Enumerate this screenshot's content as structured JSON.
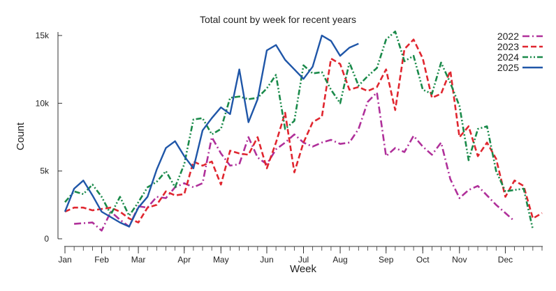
{
  "chart_data": {
    "type": "line",
    "title": "Total count by week for recent years",
    "xlabel": "Week",
    "ylabel": "Count",
    "x_range": [
      1,
      53
    ],
    "ylim": [
      0,
      15500
    ],
    "grid": false,
    "legend_placement": "top-right",
    "x_ticks": [
      {
        "label": "Jan",
        "week": 1
      },
      {
        "label": "Feb",
        "week": 5
      },
      {
        "label": "Mar",
        "week": 9
      },
      {
        "label": "Apr",
        "week": 14
      },
      {
        "label": "May",
        "week": 18
      },
      {
        "label": "Jun",
        "week": 23
      },
      {
        "label": "Jul",
        "week": 27
      },
      {
        "label": "Aug",
        "week": 31
      },
      {
        "label": "Sep",
        "week": 36
      },
      {
        "label": "Oct",
        "week": 40
      },
      {
        "label": "Nov",
        "week": 44
      },
      {
        "label": "Dec",
        "week": 49
      }
    ],
    "y_ticks": [
      {
        "label": "0",
        "value": 0
      },
      {
        "label": "5k",
        "value": 5000
      },
      {
        "label": "10k",
        "value": 10000
      },
      {
        "label": "15k",
        "value": 15000
      }
    ],
    "series": [
      {
        "name": "2022",
        "color": "#b0309a",
        "dash": "dashdot",
        "start_week": 2,
        "values": [
          1100,
          1150,
          1200,
          600,
          2000,
          1400,
          900,
          2400,
          2300,
          3100,
          3000,
          3800,
          4100,
          3800,
          4100,
          7500,
          6300,
          5400,
          5500,
          7500,
          6000,
          5500,
          6600,
          7100,
          7700,
          7100,
          6800,
          7100,
          7300,
          7000,
          7100,
          8100,
          10100,
          10800,
          6100,
          6700,
          6400,
          7600,
          6800,
          6200,
          7100,
          4400,
          3000,
          3600,
          3900,
          3200,
          2500,
          1900,
          1300
        ]
      },
      {
        "name": "2023",
        "color": "#e0262f",
        "dash": "dash",
        "start_week": 1,
        "values": [
          2000,
          2300,
          2300,
          2100,
          2200,
          2300,
          2000,
          1500,
          1200,
          2300,
          2500,
          3500,
          3200,
          3300,
          5700,
          5400,
          5700,
          4000,
          6500,
          6300,
          6200,
          7500,
          5200,
          7100,
          9300,
          4900,
          7100,
          8600,
          9000,
          13300,
          12900,
          11000,
          11200,
          10900,
          11200,
          12500,
          9500,
          14000,
          14700,
          13300,
          10400,
          10700,
          12400,
          7500,
          8300,
          6100,
          7100,
          5900,
          3100,
          4300,
          3900,
          1500,
          1900
        ]
      },
      {
        "name": "2024",
        "color": "#1a8a4a",
        "dash": "dashdotdot",
        "start_week": 1,
        "values": [
          2700,
          3500,
          3300,
          4000,
          3100,
          1800,
          3100,
          1700,
          2700,
          3800,
          4200,
          5000,
          3800,
          5500,
          8800,
          8900,
          7700,
          8100,
          10400,
          10500,
          10300,
          10400,
          11100,
          12100,
          8100,
          8700,
          12800,
          12200,
          12300,
          11000,
          10000,
          13000,
          11300,
          12000,
          12600,
          14700,
          15300,
          13100,
          13500,
          11000,
          10700,
          13000,
          11500,
          9800,
          5800,
          8100,
          8300,
          5000,
          3500,
          3600,
          3700,
          700
        ]
      },
      {
        "name": "2025",
        "color": "#1f56a8",
        "dash": "solid",
        "start_week": 1,
        "values": [
          2000,
          3700,
          4300,
          3200,
          2000,
          1600,
          1200,
          900,
          2300,
          3100,
          5100,
          6700,
          7200,
          6100,
          5200,
          8000,
          8900,
          9700,
          9200,
          12500,
          8600,
          10300,
          13900,
          14300,
          13200,
          12500,
          11800,
          12700,
          15000,
          14600,
          13500,
          14100,
          14400
        ]
      }
    ]
  }
}
